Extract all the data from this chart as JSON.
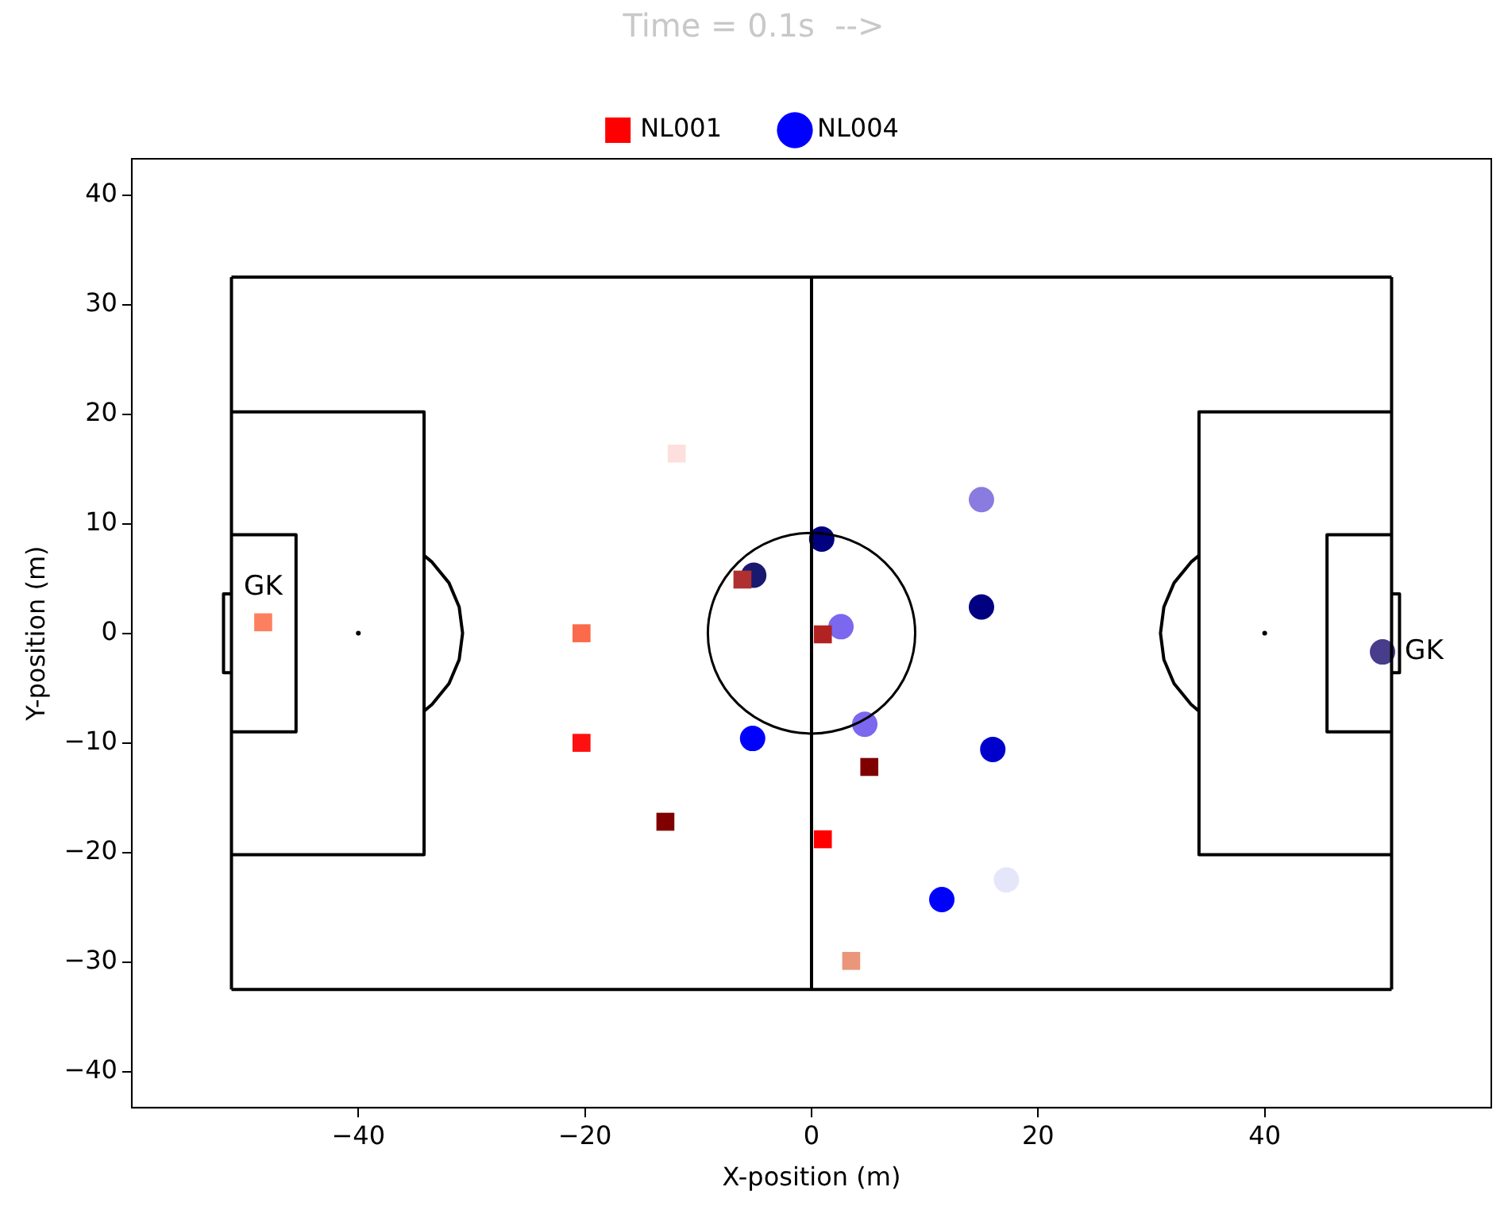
{
  "chart_data": {
    "type": "scatter",
    "title": "Time = 0.1s  -->",
    "xlabel": "X-position (m)",
    "ylabel": "Y-position (m)",
    "xlim": [
      -60,
      60
    ],
    "ylim": [
      -43.3,
      43.3
    ],
    "xticks": [
      {
        "value": -40,
        "label": "−40"
      },
      {
        "value": -20,
        "label": "−20"
      },
      0,
      20,
      40
    ],
    "yticks": [
      {
        "value": -40,
        "label": "−40"
      },
      {
        "value": -30,
        "label": "−30"
      },
      {
        "value": -20,
        "label": "−20"
      },
      {
        "value": -10,
        "label": "−10"
      },
      0,
      10,
      20,
      30,
      40
    ],
    "grid": false,
    "legend": "top",
    "annotations": [
      {
        "text": "GK",
        "x": -48.4,
        "y": 1.0
      },
      {
        "text": "GK",
        "x": 50.4,
        "y": -1.7
      }
    ],
    "series": [
      {
        "type": "line",
        "color": "#000000",
        "marker": "none",
        "x": [
          -51.2,
          51.2
        ],
        "values": [
          -32.5,
          -32.5
        ]
      },
      {
        "type": "line",
        "color": "#000000",
        "marker": "none",
        "x": [
          -51.2,
          51.2
        ],
        "values": [
          32.5,
          32.5
        ]
      },
      {
        "type": "line",
        "color": "#000000",
        "marker": "none",
        "x": [
          -51.2,
          -51.2
        ],
        "values": [
          -32.5,
          32.5
        ]
      },
      {
        "type": "line",
        "color": "#000000",
        "marker": "none",
        "x": [
          51.2,
          51.2
        ],
        "values": [
          -32.5,
          32.5
        ]
      },
      {
        "type": "line",
        "color": "#000000",
        "marker": "none",
        "x": [
          0,
          0
        ],
        "values": [
          -32.5,
          32.5
        ]
      },
      {
        "type": "line",
        "color": "#000000",
        "marker": "none",
        "x": [
          -51.2,
          -34.2,
          -34.2,
          -51.2
        ],
        "values": [
          20.2,
          20.2,
          -20.2,
          -20.2
        ]
      },
      {
        "type": "line",
        "color": "#000000",
        "marker": "none",
        "x": [
          51.2,
          34.2,
          34.2,
          51.2
        ],
        "values": [
          20.2,
          20.2,
          -20.2,
          -20.2
        ]
      },
      {
        "type": "line",
        "color": "#000000",
        "marker": "none",
        "x": [
          -51.2,
          -45.5,
          -45.5,
          -51.2
        ],
        "values": [
          9,
          9,
          -9,
          -9
        ]
      },
      {
        "type": "line",
        "color": "#000000",
        "marker": "none",
        "x": [
          51.2,
          45.5,
          45.5,
          51.2
        ],
        "values": [
          9,
          9,
          -9,
          -9
        ]
      },
      {
        "type": "line",
        "color": "#000000",
        "marker": "none",
        "x": [
          -51.2,
          -51.9,
          -51.9,
          -51.2
        ],
        "values": [
          3.6,
          3.6,
          -3.6,
          -3.6
        ]
      },
      {
        "type": "line",
        "color": "#000000",
        "marker": "none",
        "x": [
          51.2,
          51.9,
          51.9,
          51.2
        ],
        "values": [
          3.6,
          3.6,
          -3.6,
          -3.6
        ]
      },
      {
        "type": "line",
        "color": "#000000",
        "marker": "none",
        "x": [
          -34.2,
          -33.5,
          -32.0,
          -31.1,
          -30.8,
          -31.1,
          -32.0,
          -33.5,
          -34.2
        ],
        "values": [
          7.1,
          6.5,
          4.6,
          2.4,
          0,
          -2.4,
          -4.6,
          -6.5,
          -7.1
        ]
      },
      {
        "type": "line",
        "color": "#000000",
        "marker": "none",
        "x": [
          34.2,
          33.5,
          32.0,
          31.1,
          30.8,
          31.1,
          32.0,
          33.5,
          34.2
        ],
        "values": [
          7.1,
          6.5,
          4.6,
          2.4,
          0,
          -2.4,
          -4.6,
          -6.5,
          -7.1
        ]
      },
      {
        "type": "scatter",
        "color": "#000000",
        "marker": "circle",
        "x": [
          -40,
          40
        ],
        "values": [
          0,
          0
        ]
      },
      {
        "type": "scatter",
        "name": "NL001",
        "color": "#ff0000",
        "marker": "square",
        "x": [
          -48.4,
          -20.3,
          -20.3,
          -11.9,
          -6.1,
          -12.9,
          1.0,
          5.1,
          1.0,
          3.5
        ],
        "values": [
          1.0,
          0.0,
          -10.0,
          16.4,
          4.9,
          -17.2,
          -0.1,
          -12.2,
          -18.8,
          -29.9
        ],
        "colors": [
          "#fc8060",
          "#fb6a4a",
          "#ff1010",
          "#fde0dd",
          "#b03030",
          "#800000",
          "#b22222",
          "#800000",
          "#ff0000",
          "#e9967a"
        ]
      },
      {
        "type": "scatter",
        "name": "NL004",
        "color": "#0000ff",
        "marker": "circle",
        "x": [
          -5.1,
          0.9,
          2.6,
          4.7,
          -5.2,
          15.0,
          15.0,
          16.0,
          11.5,
          17.2,
          50.4
        ],
        "values": [
          5.3,
          8.6,
          0.6,
          -8.3,
          -9.6,
          12.2,
          2.4,
          -10.6,
          -24.3,
          -22.5,
          -1.7
        ],
        "colors": [
          "#191970",
          "#000080",
          "#7b68ee",
          "#7b68ee",
          "#0000ff",
          "#8a7be0",
          "#000080",
          "#0000cd",
          "#0000ff",
          "#e6e6fa",
          "#483d8b"
        ]
      }
    ]
  }
}
